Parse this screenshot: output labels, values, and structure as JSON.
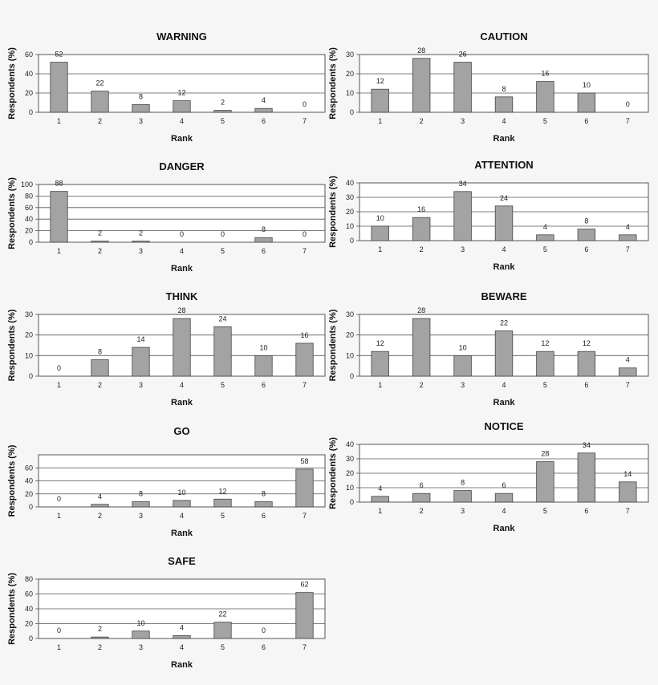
{
  "chart_data": [
    {
      "type": "bar",
      "title": "WARNING",
      "xlabel": "Rank",
      "ylabel": "Respondents (%)",
      "categories": [
        "1",
        "2",
        "3",
        "4",
        "5",
        "6",
        "7"
      ],
      "values": [
        52,
        22,
        8,
        12,
        2,
        4,
        0
      ],
      "ylim": [
        0,
        60
      ],
      "yticks": [
        0,
        20,
        40,
        60
      ],
      "grid": true,
      "color": "#a3a3a3"
    },
    {
      "type": "bar",
      "title": "CAUTION",
      "xlabel": "Rank",
      "ylabel": "Respondents (%)",
      "categories": [
        "1",
        "2",
        "3",
        "4",
        "5",
        "6",
        "7"
      ],
      "values": [
        12,
        28,
        26,
        8,
        16,
        10,
        0
      ],
      "ylim": [
        0,
        30
      ],
      "yticks": [
        0,
        10,
        20,
        30
      ],
      "grid": true,
      "color": "#a3a3a3"
    },
    {
      "type": "bar",
      "title": "DANGER",
      "xlabel": "Rank",
      "ylabel": "Respondents (%)",
      "categories": [
        "1",
        "2",
        "3",
        "4",
        "5",
        "6",
        "7"
      ],
      "values": [
        88,
        2,
        2,
        0,
        0,
        8,
        0
      ],
      "ylim": [
        0,
        100
      ],
      "yticks": [
        0,
        20,
        40,
        60,
        80,
        100
      ],
      "grid": true,
      "color": "#a3a3a3"
    },
    {
      "type": "bar",
      "title": "ATTENTION",
      "xlabel": "Rank",
      "ylabel": "Respondents (%)",
      "categories": [
        "1",
        "2",
        "3",
        "4",
        "5",
        "6",
        "7"
      ],
      "values": [
        10,
        16,
        34,
        24,
        4,
        8,
        4
      ],
      "ylim": [
        0,
        40
      ],
      "yticks": [
        0,
        10,
        20,
        30,
        40
      ],
      "grid": true,
      "color": "#a3a3a3"
    },
    {
      "type": "bar",
      "title": "THINK",
      "xlabel": "Rank",
      "ylabel": "Respondents (%)",
      "categories": [
        "1",
        "2",
        "3",
        "4",
        "5",
        "6",
        "7"
      ],
      "values": [
        0,
        8,
        14,
        28,
        24,
        10,
        16
      ],
      "ylim": [
        0,
        30
      ],
      "yticks": [
        0,
        10,
        20,
        30
      ],
      "grid": true,
      "color": "#a3a3a3"
    },
    {
      "type": "bar",
      "title": "BEWARE",
      "xlabel": "Rank",
      "ylabel": "Respondents (%)",
      "categories": [
        "1",
        "2",
        "3",
        "4",
        "5",
        "6",
        "7"
      ],
      "values": [
        12,
        28,
        10,
        22,
        12,
        12,
        4
      ],
      "ylim": [
        0,
        30
      ],
      "yticks": [
        0,
        10,
        20,
        30
      ],
      "grid": true,
      "color": "#a3a3a3"
    },
    {
      "type": "bar",
      "title": "GO",
      "xlabel": "Rank",
      "ylabel": "Respondents (%)",
      "categories": [
        "1",
        "2",
        "3",
        "4",
        "5",
        "6",
        "7"
      ],
      "values": [
        0,
        4,
        8,
        10,
        12,
        8,
        58
      ],
      "ylim": [
        0,
        80
      ],
      "yticks": [
        0,
        20,
        40,
        60
      ],
      "grid": true,
      "color": "#a3a3a3"
    },
    {
      "type": "bar",
      "title": "NOTICE",
      "xlabel": "Rank",
      "ylabel": "Respondents (%)",
      "categories": [
        "1",
        "2",
        "3",
        "4",
        "5",
        "6",
        "7"
      ],
      "values": [
        4,
        6,
        8,
        6,
        28,
        34,
        14
      ],
      "ylim": [
        0,
        40
      ],
      "yticks": [
        0,
        10,
        20,
        30,
        40
      ],
      "grid": true,
      "color": "#a3a3a3"
    },
    {
      "type": "bar",
      "title": "SAFE",
      "xlabel": "Rank",
      "ylabel": "Respondents (%)",
      "categories": [
        "1",
        "2",
        "3",
        "4",
        "5",
        "6",
        "7"
      ],
      "values": [
        0,
        2,
        10,
        4,
        22,
        0,
        62
      ],
      "ylim": [
        0,
        80
      ],
      "yticks": [
        0,
        20,
        40,
        60,
        80
      ],
      "grid": true,
      "color": "#a3a3a3"
    }
  ]
}
